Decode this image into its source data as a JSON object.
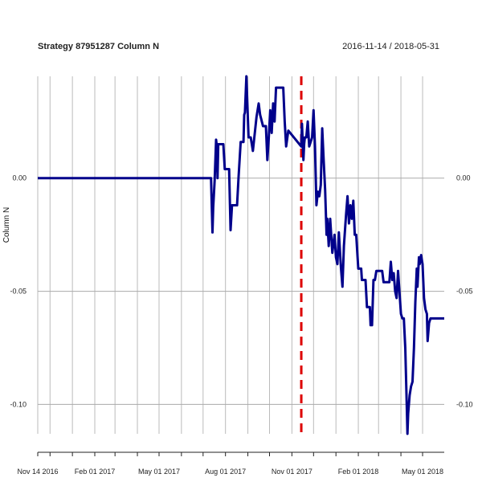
{
  "chart_data": {
    "type": "line",
    "title": "Strategy 87951287 Column N",
    "date_range": "2016-11-14 / 2018-05-31",
    "ylabel": "Column N",
    "xlabel": "",
    "x_range": [
      "2016-11-14",
      "2018-05-31"
    ],
    "ylim": [
      -0.113,
      0.045
    ],
    "y_ticks": [
      {
        "value": 0.0,
        "label": "0.00"
      },
      {
        "value": -0.05,
        "label": "-0.05"
      },
      {
        "value": -0.1,
        "label": "-0.10"
      }
    ],
    "x_ticks": [
      {
        "date": "2016-11-14",
        "label": "Nov 14 2016"
      },
      {
        "date": "2017-02-01",
        "label": "Feb 01 2017"
      },
      {
        "date": "2017-05-01",
        "label": "May 01 2017"
      },
      {
        "date": "2017-08-01",
        "label": "Aug 01 2017"
      },
      {
        "date": "2017-11-01",
        "label": "Nov 01 2017"
      },
      {
        "date": "2018-02-01",
        "label": "Feb 01 2018"
      },
      {
        "date": "2018-05-01",
        "label": "May 01 2018"
      }
    ],
    "grid": true,
    "split_marker": {
      "date": "2017-11-14",
      "color": "#dd0000"
    },
    "series": [
      {
        "color": "#00008b",
        "points": [
          [
            "2016-11-14",
            0.0
          ],
          [
            "2017-07-12",
            0.0
          ],
          [
            "2017-07-14",
            -0.024
          ],
          [
            "2017-07-15",
            -0.013
          ],
          [
            "2017-07-17",
            -0.001
          ],
          [
            "2017-07-19",
            0.017
          ],
          [
            "2017-07-20",
            0.014
          ],
          [
            "2017-07-21",
            0.0
          ],
          [
            "2017-07-22",
            0.015
          ],
          [
            "2017-07-29",
            0.015
          ],
          [
            "2017-07-31",
            0.004
          ],
          [
            "2017-08-06",
            0.004
          ],
          [
            "2017-08-08",
            -0.023
          ],
          [
            "2017-08-10",
            -0.012
          ],
          [
            "2017-08-17",
            -0.012
          ],
          [
            "2017-08-19",
            0.0
          ],
          [
            "2017-08-22",
            0.016
          ],
          [
            "2017-08-26",
            0.016
          ],
          [
            "2017-08-27",
            0.028
          ],
          [
            "2017-08-28",
            0.029
          ],
          [
            "2017-08-30",
            0.045
          ],
          [
            "2017-09-02",
            0.018
          ],
          [
            "2017-09-05",
            0.018
          ],
          [
            "2017-09-08",
            0.012
          ],
          [
            "2017-09-10",
            0.018
          ],
          [
            "2017-09-13",
            0.027
          ],
          [
            "2017-09-16",
            0.033
          ],
          [
            "2017-09-18",
            0.028
          ],
          [
            "2017-09-22",
            0.023
          ],
          [
            "2017-09-26",
            0.023
          ],
          [
            "2017-09-28",
            0.008
          ],
          [
            "2017-09-30",
            0.018
          ],
          [
            "2017-10-02",
            0.03
          ],
          [
            "2017-10-04",
            0.02
          ],
          [
            "2017-10-06",
            0.033
          ],
          [
            "2017-10-08",
            0.025
          ],
          [
            "2017-10-10",
            0.04
          ],
          [
            "2017-10-20",
            0.04
          ],
          [
            "2017-10-22",
            0.025
          ],
          [
            "2017-10-24",
            0.014
          ],
          [
            "2017-10-27",
            0.021
          ],
          [
            "2017-11-14",
            0.014
          ],
          [
            "2017-11-15",
            0.024
          ],
          [
            "2017-11-17",
            0.008
          ],
          [
            "2017-11-18",
            0.015
          ],
          [
            "2017-11-19",
            0.018
          ],
          [
            "2017-11-21",
            0.018
          ],
          [
            "2017-11-23",
            0.025
          ],
          [
            "2017-11-25",
            0.014
          ],
          [
            "2017-11-27",
            0.016
          ],
          [
            "2017-11-29",
            0.018
          ],
          [
            "2017-12-01",
            0.03
          ],
          [
            "2017-12-03",
            0.014
          ],
          [
            "2017-12-05",
            -0.012
          ],
          [
            "2017-12-07",
            -0.006
          ],
          [
            "2017-12-09",
            -0.008
          ],
          [
            "2017-12-11",
            -0.003
          ],
          [
            "2017-12-13",
            0.022
          ],
          [
            "2017-12-15",
            0.008
          ],
          [
            "2017-12-17",
            -0.005
          ],
          [
            "2017-12-19",
            -0.025
          ],
          [
            "2017-12-20",
            -0.018
          ],
          [
            "2017-12-22",
            -0.03
          ],
          [
            "2017-12-24",
            -0.018
          ],
          [
            "2017-12-27",
            -0.033
          ],
          [
            "2017-12-30",
            -0.025
          ],
          [
            "2018-01-01",
            -0.035
          ],
          [
            "2018-01-03",
            -0.038
          ],
          [
            "2018-01-05",
            -0.024
          ],
          [
            "2018-01-08",
            -0.04
          ],
          [
            "2018-01-10",
            -0.048
          ],
          [
            "2018-01-12",
            -0.03
          ],
          [
            "2018-01-15",
            -0.016
          ],
          [
            "2018-01-17",
            -0.008
          ],
          [
            "2018-01-19",
            -0.02
          ],
          [
            "2018-01-21",
            -0.012
          ],
          [
            "2018-01-23",
            -0.018
          ],
          [
            "2018-01-25",
            -0.01
          ],
          [
            "2018-01-27",
            -0.025
          ],
          [
            "2018-01-29",
            -0.025
          ],
          [
            "2018-02-01",
            -0.04
          ],
          [
            "2018-02-05",
            -0.04
          ],
          [
            "2018-02-06",
            -0.045
          ],
          [
            "2018-02-11",
            -0.045
          ],
          [
            "2018-02-13",
            -0.057
          ],
          [
            "2018-02-17",
            -0.057
          ],
          [
            "2018-02-18",
            -0.065
          ],
          [
            "2018-02-20",
            -0.065
          ],
          [
            "2018-02-22",
            -0.045
          ],
          [
            "2018-02-24",
            -0.045
          ],
          [
            "2018-02-26",
            -0.041
          ],
          [
            "2018-03-06",
            -0.041
          ],
          [
            "2018-03-08",
            -0.046
          ],
          [
            "2018-03-16",
            -0.046
          ],
          [
            "2018-03-18",
            -0.037
          ],
          [
            "2018-03-20",
            -0.045
          ],
          [
            "2018-03-22",
            -0.042
          ],
          [
            "2018-03-24",
            -0.05
          ],
          [
            "2018-03-26",
            -0.053
          ],
          [
            "2018-03-28",
            -0.041
          ],
          [
            "2018-04-01",
            -0.06
          ],
          [
            "2018-04-03",
            -0.062
          ],
          [
            "2018-04-05",
            -0.062
          ],
          [
            "2018-04-07",
            -0.075
          ],
          [
            "2018-04-09",
            -0.1
          ],
          [
            "2018-04-10",
            -0.113
          ],
          [
            "2018-04-11",
            -0.104
          ],
          [
            "2018-04-13",
            -0.096
          ],
          [
            "2018-04-15",
            -0.092
          ],
          [
            "2018-04-17",
            -0.09
          ],
          [
            "2018-04-19",
            -0.075
          ],
          [
            "2018-04-21",
            -0.055
          ],
          [
            "2018-04-23",
            -0.04
          ],
          [
            "2018-04-24",
            -0.048
          ],
          [
            "2018-04-26",
            -0.035
          ],
          [
            "2018-04-27",
            -0.038
          ],
          [
            "2018-04-29",
            -0.034
          ],
          [
            "2018-05-01",
            -0.038
          ],
          [
            "2018-05-03",
            -0.053
          ],
          [
            "2018-05-05",
            -0.058
          ],
          [
            "2018-05-07",
            -0.06
          ],
          [
            "2018-05-08",
            -0.072
          ],
          [
            "2018-05-10",
            -0.064
          ],
          [
            "2018-05-12",
            -0.062
          ],
          [
            "2018-05-31",
            -0.062
          ]
        ]
      }
    ]
  }
}
